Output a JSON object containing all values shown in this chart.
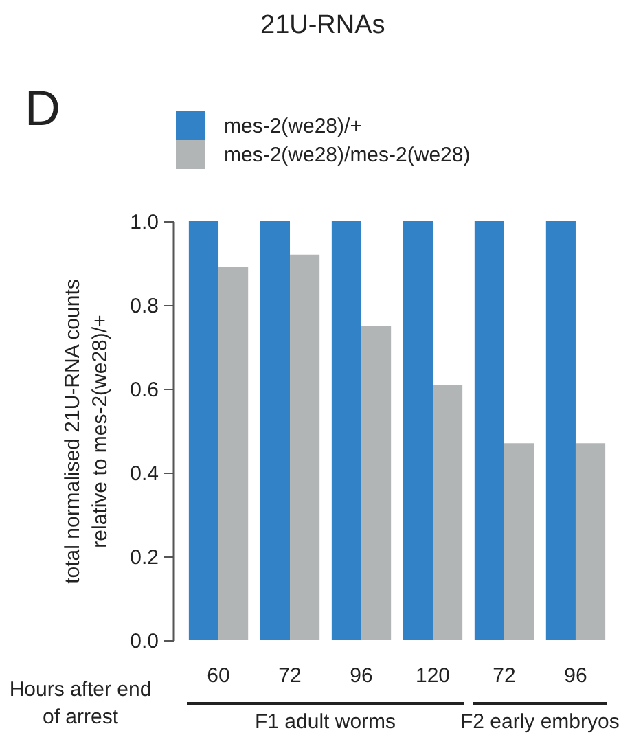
{
  "chart_data": {
    "type": "bar",
    "title": "21U-RNAs",
    "xlabel": "Hours after end of arrest",
    "ylabel": "total normalised 21U-RNA counts relative to mes-2(we28)/+",
    "annotations": [
      "D",
      "F1 adult worms",
      "F2 early embryos"
    ],
    "categories": [
      "60",
      "72",
      "96",
      "120",
      "72",
      "96"
    ],
    "series": [
      {
        "name": "mes-2(we28)/+",
        "color": "#3182c6",
        "values": [
          1.0,
          1.0,
          1.0,
          1.0,
          1.0,
          1.0
        ]
      },
      {
        "name": "mes-2(we28)/mes-2(we28)",
        "color": "#b2b5b6",
        "values": [
          0.89,
          0.92,
          0.75,
          0.61,
          0.47,
          0.47
        ]
      }
    ],
    "ylim": [
      0,
      1
    ],
    "yticks": [
      {
        "value": 0,
        "label": "0.0"
      },
      {
        "value": 0.2,
        "label": "0.2"
      },
      {
        "value": 0.4,
        "label": "0.4"
      },
      {
        "value": 0.6,
        "label": "0.6"
      },
      {
        "value": 0.8,
        "label": "0.8"
      },
      {
        "value": 1,
        "label": "1.0"
      }
    ],
    "grid": false,
    "legend": "top left"
  }
}
